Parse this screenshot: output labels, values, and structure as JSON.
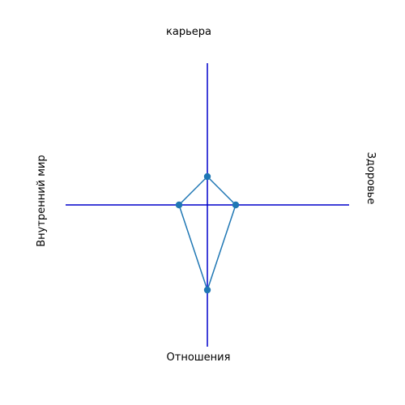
{
  "chart_data": {
    "type": "line",
    "title": "",
    "axes": [
      {
        "name": "карьера",
        "direction": "up",
        "value": 1.0
      },
      {
        "name": "Здоровье",
        "direction": "right",
        "value": 1.0
      },
      {
        "name": "Отношения",
        "direction": "down",
        "value": 3.0
      },
      {
        "name": "Внутренний мир",
        "direction": "left",
        "value": 1.0
      }
    ],
    "series": [
      {
        "name": "",
        "points": [
          {
            "x": -1,
            "y": 0
          },
          {
            "x": 0,
            "y": 1
          },
          {
            "x": 1,
            "y": 0
          },
          {
            "x": 0,
            "y": -3
          },
          {
            "x": -1,
            "y": 0
          }
        ]
      }
    ],
    "xlim": [
      -5,
      5
    ],
    "ylim": [
      -5,
      5
    ],
    "grid": false,
    "colors": {
      "axis_lines": "#0000cc",
      "series": "#1f77b4"
    }
  }
}
